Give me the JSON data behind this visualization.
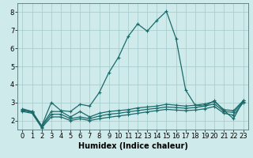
{
  "title": "",
  "xlabel": "Humidex (Indice chaleur)",
  "ylabel": "",
  "bg_color": "#ceeaea",
  "grid_color": "#aacece",
  "line_color": "#1a6b6b",
  "xlim": [
    -0.5,
    23.5
  ],
  "ylim": [
    1.5,
    8.5
  ],
  "yticks": [
    2,
    3,
    4,
    5,
    6,
    7,
    8
  ],
  "xticks": [
    0,
    1,
    2,
    3,
    4,
    5,
    6,
    7,
    8,
    9,
    10,
    11,
    12,
    13,
    14,
    15,
    16,
    17,
    18,
    19,
    20,
    21,
    22,
    23
  ],
  "series": [
    {
      "x": [
        0,
        1,
        2,
        3,
        4,
        5,
        6,
        7,
        8,
        9,
        10,
        11,
        12,
        13,
        14,
        15,
        16,
        17,
        18,
        19,
        20,
        21,
        22,
        23
      ],
      "y": [
        2.65,
        2.5,
        1.7,
        3.0,
        2.55,
        2.5,
        2.9,
        2.8,
        3.55,
        4.65,
        5.5,
        6.65,
        7.35,
        6.95,
        7.55,
        8.05,
        6.55,
        3.7,
        2.85,
        2.8,
        3.1,
        2.55,
        2.1,
        3.1
      ]
    },
    {
      "x": [
        0,
        1,
        2,
        3,
        4,
        5,
        6,
        7,
        8,
        9,
        10,
        11,
        12,
        13,
        14,
        15,
        16,
        17,
        18,
        19,
        20,
        21,
        22,
        23
      ],
      "y": [
        2.6,
        2.5,
        1.7,
        2.5,
        2.5,
        2.2,
        2.5,
        2.2,
        2.4,
        2.5,
        2.55,
        2.6,
        2.7,
        2.75,
        2.8,
        2.9,
        2.85,
        2.8,
        2.85,
        2.92,
        3.05,
        2.6,
        2.55,
        3.1
      ]
    },
    {
      "x": [
        0,
        1,
        2,
        3,
        4,
        5,
        6,
        7,
        8,
        9,
        10,
        11,
        12,
        13,
        14,
        15,
        16,
        17,
        18,
        19,
        20,
        21,
        22,
        23
      ],
      "y": [
        2.55,
        2.45,
        1.65,
        2.35,
        2.35,
        2.1,
        2.2,
        2.1,
        2.25,
        2.35,
        2.4,
        2.48,
        2.55,
        2.62,
        2.68,
        2.75,
        2.72,
        2.68,
        2.72,
        2.8,
        2.92,
        2.5,
        2.45,
        3.05
      ]
    },
    {
      "x": [
        0,
        1,
        2,
        3,
        4,
        5,
        6,
        7,
        8,
        9,
        10,
        11,
        12,
        13,
        14,
        15,
        16,
        17,
        18,
        19,
        20,
        21,
        22,
        23
      ],
      "y": [
        2.5,
        2.4,
        1.6,
        2.2,
        2.2,
        2.0,
        2.1,
        2.0,
        2.1,
        2.18,
        2.25,
        2.32,
        2.4,
        2.48,
        2.55,
        2.62,
        2.58,
        2.55,
        2.58,
        2.65,
        2.78,
        2.4,
        2.3,
        2.98
      ]
    }
  ],
  "marker": "+",
  "markersize": 3.5,
  "linewidth": 0.9,
  "xlabel_fontsize": 7,
  "tick_fontsize": 6
}
